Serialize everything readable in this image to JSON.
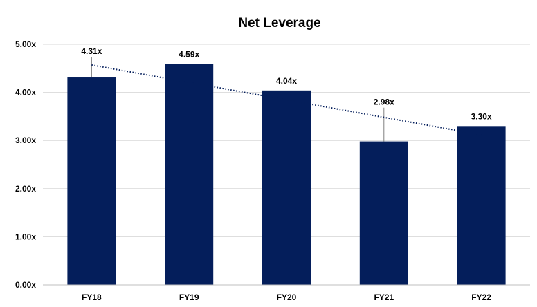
{
  "chart_data": {
    "type": "bar",
    "title": "Net Leverage",
    "xlabel": "",
    "ylabel": "",
    "categories": [
      "FY18",
      "FY19",
      "FY20",
      "FY21",
      "FY22"
    ],
    "series": [
      {
        "values": [
          4.31,
          4.59,
          4.04,
          2.98,
          3.3
        ]
      }
    ],
    "data_labels": [
      "4.31x",
      "4.59x",
      "4.04x",
      "2.98x",
      "3.30x"
    ],
    "ylim": [
      0,
      5
    ],
    "y_ticks": [
      0,
      1,
      2,
      3,
      4,
      5
    ],
    "y_tick_labels": [
      "0.00x",
      "1.00x",
      "2.00x",
      "3.00x",
      "4.00x",
      "5.00x"
    ],
    "grid": true,
    "trendline": {
      "type": "linear",
      "style": "dotted"
    },
    "colors": {
      "bar": "#041e5b",
      "trendline": "#041e5b",
      "grid": "#d9d9d9",
      "axis": "#bfbfbf"
    }
  }
}
